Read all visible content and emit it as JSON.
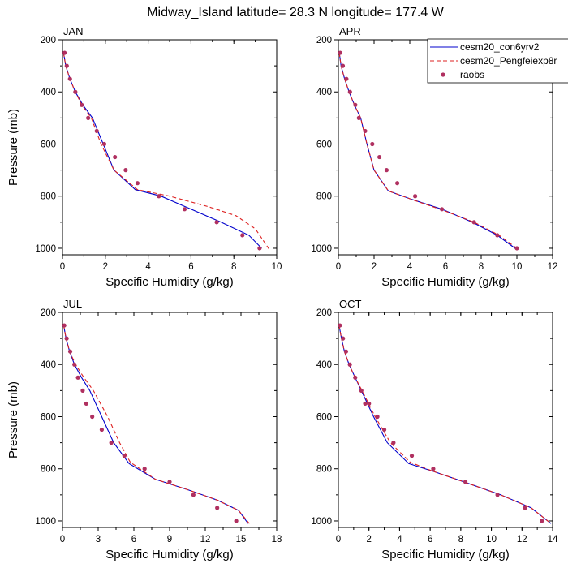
{
  "title": "Midway_Island  latitude= 28.3 N longitude= 177.4 W",
  "legend": {
    "items": [
      {
        "label": "cesm20_con6yrv2",
        "color": "#0000cc",
        "style": "solid"
      },
      {
        "label": "cesm20_Pengfeiexp8r",
        "color": "#dd2222",
        "style": "dashed"
      },
      {
        "label": "raobs",
        "color": "#b03060",
        "style": "marker"
      }
    ]
  },
  "chart_data": [
    {
      "type": "line",
      "panel": "JAN",
      "xlabel": "Specific Humidity (g/kg)",
      "ylabel": "Pressure (mb)",
      "xlim": [
        0,
        10
      ],
      "xticks": [
        0,
        2,
        4,
        6,
        8,
        10
      ],
      "ylim": [
        200,
        1025
      ],
      "yticks": [
        200,
        400,
        600,
        800,
        1000
      ],
      "y_inverted": true,
      "series": [
        {
          "name": "cesm20_con6yrv2",
          "x": [
            0.05,
            0.15,
            0.35,
            0.6,
            0.95,
            1.4,
            1.9,
            2.4,
            3.4,
            4.6,
            6.0,
            7.4,
            8.7,
            9.3
          ],
          "y": [
            250,
            300,
            350,
            400,
            450,
            500,
            600,
            700,
            775,
            800,
            850,
            900,
            950,
            1000
          ]
        },
        {
          "name": "cesm20_Pengfeiexp8r",
          "x": [
            0.05,
            0.15,
            0.35,
            0.6,
            0.9,
            1.35,
            1.8,
            2.4,
            3.5,
            5.0,
            6.8,
            8.1,
            9.0,
            9.7
          ],
          "y": [
            250,
            300,
            350,
            400,
            450,
            500,
            600,
            700,
            775,
            800,
            840,
            875,
            925,
            1010
          ]
        },
        {
          "name": "raobs",
          "x": [
            0.1,
            0.2,
            0.35,
            0.6,
            0.9,
            1.2,
            1.6,
            1.95,
            2.45,
            2.95,
            3.5,
            4.5,
            5.7,
            7.2,
            8.4,
            9.2
          ],
          "y": [
            250,
            300,
            350,
            400,
            450,
            500,
            550,
            600,
            650,
            700,
            750,
            800,
            850,
            900,
            950,
            1000
          ]
        }
      ]
    },
    {
      "type": "line",
      "panel": "APR",
      "xlabel": "Specific Humidity (g/kg)",
      "ylabel": "",
      "xlim": [
        0,
        12
      ],
      "xticks": [
        0,
        2,
        4,
        6,
        8,
        10,
        12
      ],
      "ylim": [
        200,
        1025
      ],
      "yticks": [
        200,
        400,
        600,
        800,
        1000
      ],
      "y_inverted": true,
      "series": [
        {
          "name": "cesm20_con6yrv2",
          "x": [
            0.05,
            0.15,
            0.35,
            0.6,
            0.9,
            1.25,
            1.6,
            2.0,
            2.8,
            4.0,
            5.8,
            7.5,
            8.9,
            9.9
          ],
          "y": [
            250,
            300,
            350,
            400,
            450,
            500,
            600,
            700,
            780,
            810,
            850,
            900,
            950,
            1000
          ]
        },
        {
          "name": "cesm20_Pengfeiexp8r",
          "x": [
            0.05,
            0.15,
            0.35,
            0.6,
            0.9,
            1.25,
            1.6,
            2.0,
            2.8,
            4.2,
            5.9,
            7.6,
            9.0,
            10.0
          ],
          "y": [
            250,
            300,
            350,
            400,
            450,
            500,
            600,
            700,
            780,
            815,
            855,
            900,
            950,
            1000
          ]
        },
        {
          "name": "raobs",
          "x": [
            0.1,
            0.25,
            0.45,
            0.65,
            0.95,
            1.15,
            1.5,
            1.9,
            2.3,
            2.7,
            3.3,
            4.3,
            5.8,
            7.6,
            8.9,
            10.0
          ],
          "y": [
            250,
            300,
            350,
            400,
            450,
            500,
            550,
            600,
            650,
            700,
            750,
            800,
            850,
            900,
            950,
            1000
          ]
        }
      ]
    },
    {
      "type": "line",
      "panel": "JUL",
      "xlabel": "Specific Humidity (g/kg)",
      "ylabel": "Pressure (mb)",
      "xlim": [
        0,
        18
      ],
      "xticks": [
        0,
        3,
        6,
        9,
        12,
        15,
        18
      ],
      "ylim": [
        200,
        1025
      ],
      "yticks": [
        200,
        400,
        600,
        800,
        1000
      ],
      "y_inverted": true,
      "series": [
        {
          "name": "cesm20_con6yrv2",
          "x": [
            0.1,
            0.3,
            0.6,
            1.0,
            1.6,
            2.3,
            3.3,
            4.3,
            5.6,
            7.8,
            10.5,
            13.0,
            14.8,
            15.6
          ],
          "y": [
            250,
            300,
            350,
            400,
            450,
            500,
            600,
            700,
            780,
            840,
            880,
            920,
            960,
            1010
          ]
        },
        {
          "name": "cesm20_Pengfeiexp8r",
          "x": [
            0.1,
            0.3,
            0.6,
            1.1,
            1.8,
            2.6,
            3.8,
            4.8,
            5.7,
            7.8,
            10.5,
            13.0,
            14.8,
            15.7
          ],
          "y": [
            250,
            300,
            350,
            400,
            450,
            500,
            600,
            700,
            775,
            840,
            880,
            920,
            960,
            1010
          ]
        },
        {
          "name": "raobs",
          "x": [
            0.15,
            0.35,
            0.65,
            1.0,
            1.3,
            1.7,
            2.0,
            2.5,
            3.3,
            4.1,
            5.2,
            6.9,
            9.0,
            11.0,
            13.0,
            14.6
          ],
          "y": [
            250,
            300,
            350,
            400,
            450,
            500,
            550,
            600,
            650,
            700,
            750,
            800,
            850,
            900,
            950,
            1000
          ]
        }
      ]
    },
    {
      "type": "line",
      "panel": "OCT",
      "xlabel": "Specific Humidity (g/kg)",
      "ylabel": "",
      "xlim": [
        0,
        14
      ],
      "xticks": [
        0,
        2,
        4,
        6,
        8,
        10,
        12,
        14
      ],
      "ylim": [
        200,
        1025
      ],
      "yticks": [
        200,
        400,
        600,
        800,
        1000
      ],
      "y_inverted": true,
      "series": [
        {
          "name": "cesm20_con6yrv2",
          "x": [
            0.05,
            0.2,
            0.4,
            0.7,
            1.1,
            1.5,
            2.3,
            3.2,
            4.6,
            6.2,
            8.2,
            10.6,
            12.6,
            13.9
          ],
          "y": [
            250,
            300,
            350,
            400,
            450,
            500,
            600,
            700,
            780,
            810,
            850,
            900,
            950,
            1010
          ]
        },
        {
          "name": "cesm20_Pengfeiexp8r",
          "x": [
            0.05,
            0.2,
            0.4,
            0.7,
            1.1,
            1.55,
            2.4,
            3.4,
            4.7,
            6.2,
            8.2,
            10.6,
            12.6,
            13.9
          ],
          "y": [
            250,
            300,
            350,
            400,
            450,
            500,
            600,
            700,
            775,
            810,
            850,
            900,
            950,
            1010
          ]
        },
        {
          "name": "raobs",
          "x": [
            0.1,
            0.3,
            0.5,
            0.75,
            1.1,
            1.5,
            1.75,
            2.0,
            2.55,
            3.0,
            3.6,
            4.8,
            6.2,
            8.3,
            10.4,
            12.2,
            13.3
          ],
          "y": [
            250,
            300,
            350,
            400,
            450,
            500,
            550,
            550,
            600,
            650,
            700,
            750,
            800,
            850,
            900,
            950,
            1000
          ]
        }
      ]
    }
  ]
}
